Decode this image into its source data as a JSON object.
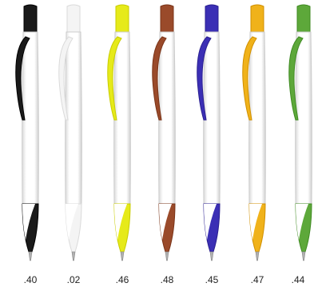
{
  "pens": [
    {
      "code": ".40",
      "accent": "#1a1a1a",
      "accent_dark": "#000000"
    },
    {
      "code": ".02",
      "accent": "#f4f4f4",
      "accent_dark": "#dadada"
    },
    {
      "code": ".46",
      "accent": "#e6ea1a",
      "accent_dark": "#c8cc00"
    },
    {
      "code": ".48",
      "accent": "#9a4a2a",
      "accent_dark": "#7a3418"
    },
    {
      "code": ".45",
      "accent": "#3b2fb5",
      "accent_dark": "#2a1f90"
    },
    {
      "code": ".47",
      "accent": "#f0b21a",
      "accent_dark": "#d08f00"
    },
    {
      "code": ".44",
      "accent": "#5da83a",
      "accent_dark": "#3f8a22"
    }
  ]
}
